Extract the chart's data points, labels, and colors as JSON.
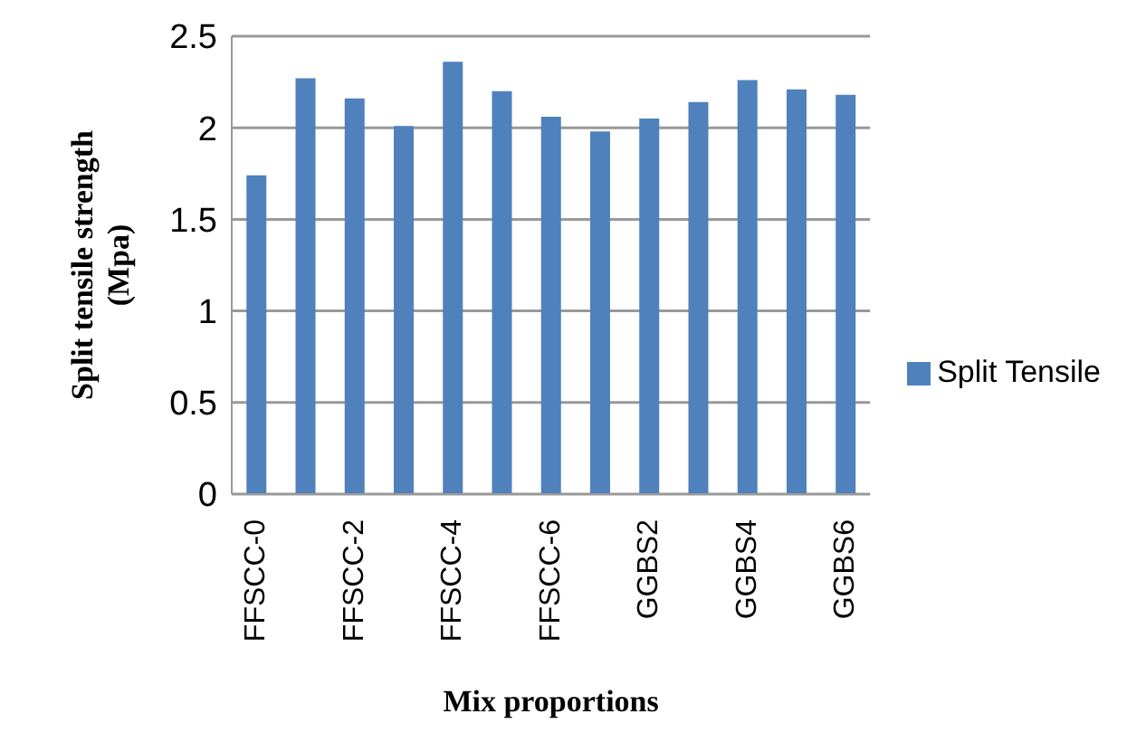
{
  "chart_data": {
    "type": "bar",
    "xlabel": "Mix proportions",
    "ylabel": "Split tensile strength (Mpa)",
    "categories": [
      "FFSCC-0",
      null,
      "FFSCC-2",
      null,
      "FFSCC-4",
      null,
      "FFSCC-6",
      null,
      "GGBS2",
      null,
      "GGBS4",
      null,
      "GGBS6"
    ],
    "series": [
      {
        "name": "Split Tensile",
        "color": "#4f81bd",
        "values": [
          1.74,
          2.27,
          2.16,
          2.01,
          2.36,
          2.2,
          2.06,
          1.98,
          2.05,
          2.14,
          2.26,
          2.21,
          2.18
        ]
      }
    ],
    "ylim": [
      0,
      2.5
    ],
    "yticks": [
      0,
      0.5,
      1,
      1.5,
      2,
      2.5
    ],
    "grid": "y",
    "legend": "right"
  }
}
